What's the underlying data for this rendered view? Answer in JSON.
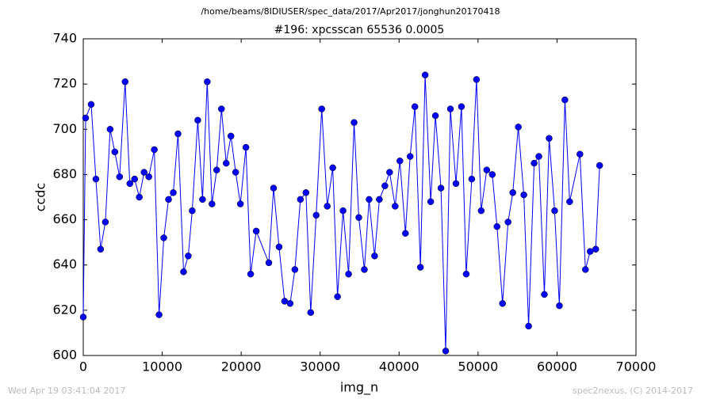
{
  "header": "/home/beams/8IDIUSER/spec_data/2017/Apr2017/jonghun20170418",
  "footer": {
    "left": "Wed Apr 19 03:41:04 2017",
    "right": "spec2nexus, (C) 2014-2017"
  },
  "chart_data": {
    "type": "line",
    "title": "#196: xpcsscan 65536 0.0005",
    "x_label": "img_n",
    "y_label": "ccdc",
    "color": "#0000ff",
    "x": [
      0,
      300,
      1000,
      1600,
      2200,
      2800,
      3400,
      4000,
      4600,
      5300,
      5900,
      6500,
      7100,
      7700,
      8300,
      9000,
      9600,
      10200,
      10800,
      11400,
      12000,
      12700,
      13300,
      13800,
      14500,
      15100,
      15700,
      16300,
      16900,
      17500,
      18100,
      18700,
      19300,
      19900,
      20600,
      21200,
      21900,
      23500,
      24100,
      24800,
      25500,
      26200,
      26800,
      27500,
      28200,
      28800,
      29500,
      30200,
      30900,
      31600,
      32200,
      32900,
      33600,
      34300,
      34900,
      35600,
      36200,
      36900,
      37500,
      38200,
      38800,
      39500,
      40100,
      40800,
      41400,
      42000,
      42700,
      43300,
      44000,
      44600,
      45300,
      45900,
      46500,
      47200,
      47900,
      48500,
      49200,
      49800,
      50400,
      51100,
      51800,
      52400,
      53100,
      53800,
      54400,
      55100,
      55800,
      56400,
      57100,
      57700,
      58400,
      59000,
      59700,
      60300,
      61000,
      61600,
      62900,
      63600,
      64200,
      64900,
      65400
    ],
    "values": [
      617,
      705,
      711,
      678,
      647,
      659,
      700,
      690,
      679,
      721,
      676,
      678,
      670,
      681,
      679,
      691,
      618,
      652,
      669,
      672,
      698,
      637,
      644,
      664,
      704,
      669,
      721,
      667,
      682,
      709,
      685,
      697,
      681,
      667,
      692,
      636,
      655,
      641,
      674,
      648,
      624,
      623,
      638,
      669,
      672,
      619,
      662,
      709,
      666,
      683,
      626,
      664,
      636,
      703,
      661,
      638,
      669,
      644,
      669,
      675,
      681,
      666,
      686,
      654,
      688,
      710,
      639,
      724,
      668,
      706,
      674,
      602,
      709,
      676,
      710,
      636,
      678,
      722,
      664,
      682,
      680,
      657,
      623,
      659,
      672,
      701,
      671,
      613,
      685,
      688,
      627,
      696,
      664,
      622,
      713,
      668,
      689,
      638,
      646,
      647,
      684
    ],
    "xlim": [
      0,
      70000
    ],
    "xticks": [
      0,
      10000,
      20000,
      30000,
      40000,
      50000,
      60000,
      70000
    ],
    "ylim": [
      600,
      740
    ],
    "yticks": [
      600,
      620,
      640,
      660,
      680,
      700,
      720,
      740
    ]
  }
}
